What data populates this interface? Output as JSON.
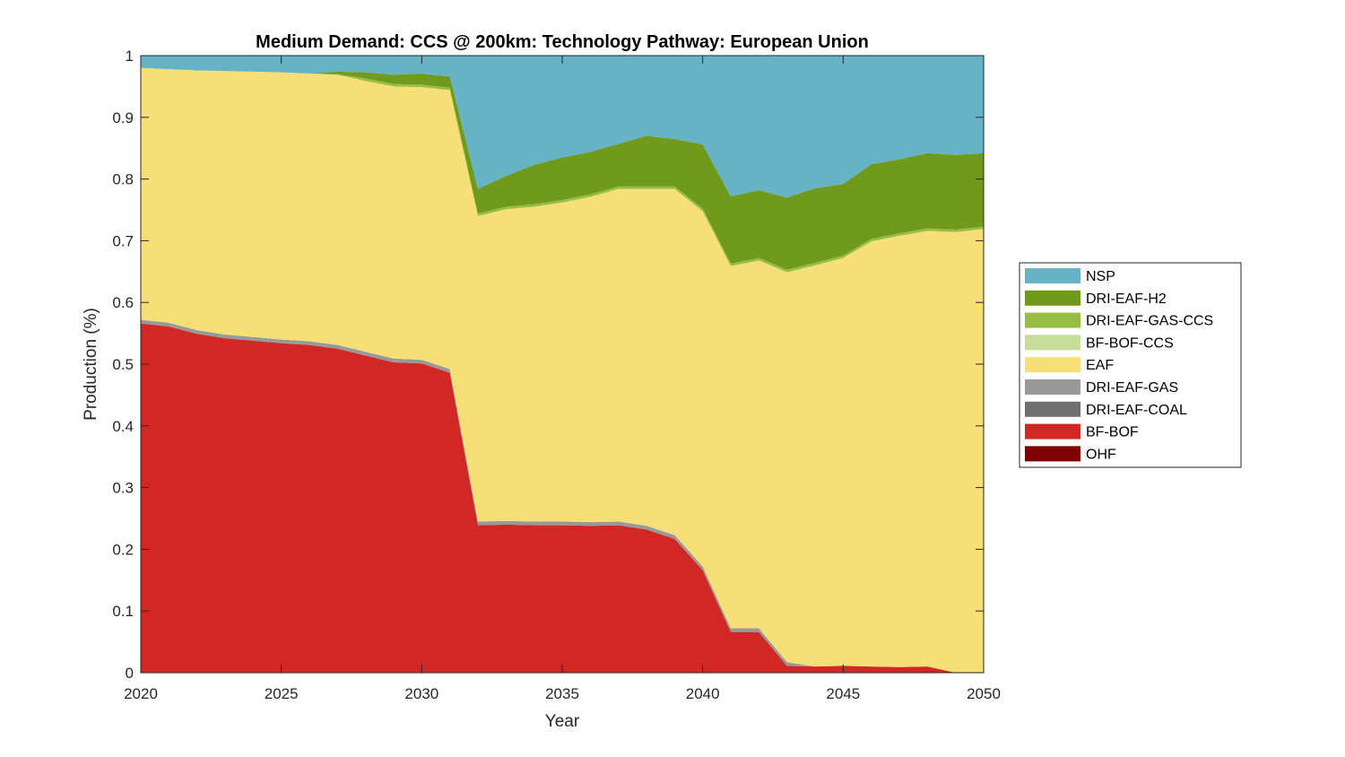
{
  "chart_data": {
    "type": "area",
    "stacked": true,
    "title": "Medium Demand: CCS @ 200km: Technology Pathway: European Union",
    "xlabel": "Year",
    "ylabel": "Production (%)",
    "xlim": [
      2020,
      2050
    ],
    "ylim": [
      0,
      1
    ],
    "xticks": [
      "2020",
      "2025",
      "2030",
      "2035",
      "2040",
      "2045",
      "2050"
    ],
    "yticks": [
      "0",
      "0.1",
      "0.2",
      "0.3",
      "0.4",
      "0.5",
      "0.6",
      "0.7",
      "0.8",
      "0.9",
      "1"
    ],
    "legend_position": "outside-right",
    "grid": false,
    "x": [
      2020,
      2021,
      2022,
      2023,
      2024,
      2025,
      2026,
      2027,
      2028,
      2029,
      2030,
      2031,
      2032,
      2033,
      2034,
      2035,
      2036,
      2037,
      2038,
      2039,
      2040,
      2041,
      2042,
      2043,
      2044,
      2045,
      2046,
      2047,
      2048,
      2049,
      2050
    ],
    "series": [
      {
        "name": "OHF",
        "color": "#7f0000",
        "values": [
          0,
          0,
          0,
          0,
          0,
          0,
          0,
          0,
          0,
          0,
          0,
          0,
          0,
          0,
          0,
          0,
          0,
          0,
          0,
          0,
          0,
          0,
          0,
          0,
          0,
          0,
          0,
          0,
          0,
          0,
          0
        ]
      },
      {
        "name": "BF-BOF",
        "color": "#d12826",
        "values": [
          0.566,
          0.561,
          0.549,
          0.542,
          0.538,
          0.534,
          0.531,
          0.525,
          0.514,
          0.503,
          0.501,
          0.486,
          0.239,
          0.24,
          0.239,
          0.239,
          0.238,
          0.239,
          0.232,
          0.217,
          0.166,
          0.066,
          0.066,
          0.011,
          0.01,
          0.011,
          0.01,
          0.009,
          0.01,
          0,
          0
        ]
      },
      {
        "name": "DRI-EAF-COAL",
        "color": "#707070",
        "values": [
          0,
          0,
          0,
          0,
          0,
          0,
          0,
          0,
          0,
          0,
          0,
          0,
          0,
          0,
          0,
          0,
          0,
          0,
          0,
          0,
          0,
          0,
          0,
          0,
          0,
          0,
          0,
          0,
          0,
          0,
          0
        ]
      },
      {
        "name": "DRI-EAF-GAS",
        "color": "#999999",
        "values": [
          0.006,
          0.006,
          0.006,
          0.006,
          0.006,
          0.006,
          0.006,
          0.006,
          0.006,
          0.006,
          0.006,
          0.006,
          0.006,
          0.006,
          0.006,
          0.006,
          0.006,
          0.006,
          0.006,
          0.006,
          0.006,
          0.006,
          0.006,
          0.006,
          0,
          0,
          0,
          0,
          0,
          0,
          0
        ]
      },
      {
        "name": "EAF",
        "color": "#f6df76",
        "values": [
          0.408,
          0.411,
          0.421,
          0.427,
          0.43,
          0.433,
          0.434,
          0.438,
          0.439,
          0.441,
          0.442,
          0.452,
          0.495,
          0.505,
          0.51,
          0.517,
          0.527,
          0.539,
          0.546,
          0.561,
          0.576,
          0.587,
          0.596,
          0.632,
          0.65,
          0.661,
          0.689,
          0.699,
          0.706,
          0.714,
          0.719
        ]
      },
      {
        "name": "BF-BOF-CCS",
        "color": "#c6dc98",
        "values": [
          0,
          0,
          0,
          0,
          0,
          0,
          0,
          0,
          0,
          0,
          0,
          0,
          0,
          0,
          0,
          0,
          0,
          0,
          0,
          0,
          0,
          0,
          0,
          0,
          0,
          0,
          0,
          0,
          0,
          0,
          0
        ]
      },
      {
        "name": "DRI-EAF-GAS-CCS",
        "color": "#97be44",
        "values": [
          0,
          0,
          0,
          0,
          0,
          0,
          0,
          0.001,
          0.004,
          0.004,
          0.004,
          0.004,
          0.004,
          0.004,
          0.004,
          0.004,
          0.004,
          0.004,
          0.004,
          0.004,
          0.004,
          0.004,
          0.004,
          0.004,
          0.004,
          0.004,
          0.004,
          0.004,
          0.004,
          0.004,
          0.004
        ]
      },
      {
        "name": "DRI-EAF-H2",
        "color": "#6f9a1c",
        "values": [
          0,
          0,
          0,
          0,
          0,
          0,
          0,
          0.004,
          0.01,
          0.015,
          0.018,
          0.018,
          0.04,
          0.05,
          0.064,
          0.069,
          0.069,
          0.069,
          0.082,
          0.077,
          0.104,
          0.109,
          0.11,
          0.117,
          0.121,
          0.116,
          0.121,
          0.12,
          0.122,
          0.121,
          0.119
        ]
      },
      {
        "name": "NSP",
        "color": "#66b3c6",
        "values": [
          0.02,
          0.022,
          0.024,
          0.025,
          0.026,
          0.027,
          0.029,
          0.026,
          0.027,
          0.031,
          0.029,
          0.034,
          0.216,
          0.195,
          0.177,
          0.165,
          0.156,
          0.143,
          0.13,
          0.135,
          0.144,
          0.228,
          0.218,
          0.23,
          0.215,
          0.208,
          0.176,
          0.168,
          0.158,
          0.161,
          0.158
        ]
      }
    ],
    "legend_order": [
      "NSP",
      "DRI-EAF-H2",
      "DRI-EAF-GAS-CCS",
      "BF-BOF-CCS",
      "EAF",
      "DRI-EAF-GAS",
      "DRI-EAF-COAL",
      "BF-BOF",
      "OHF"
    ]
  }
}
